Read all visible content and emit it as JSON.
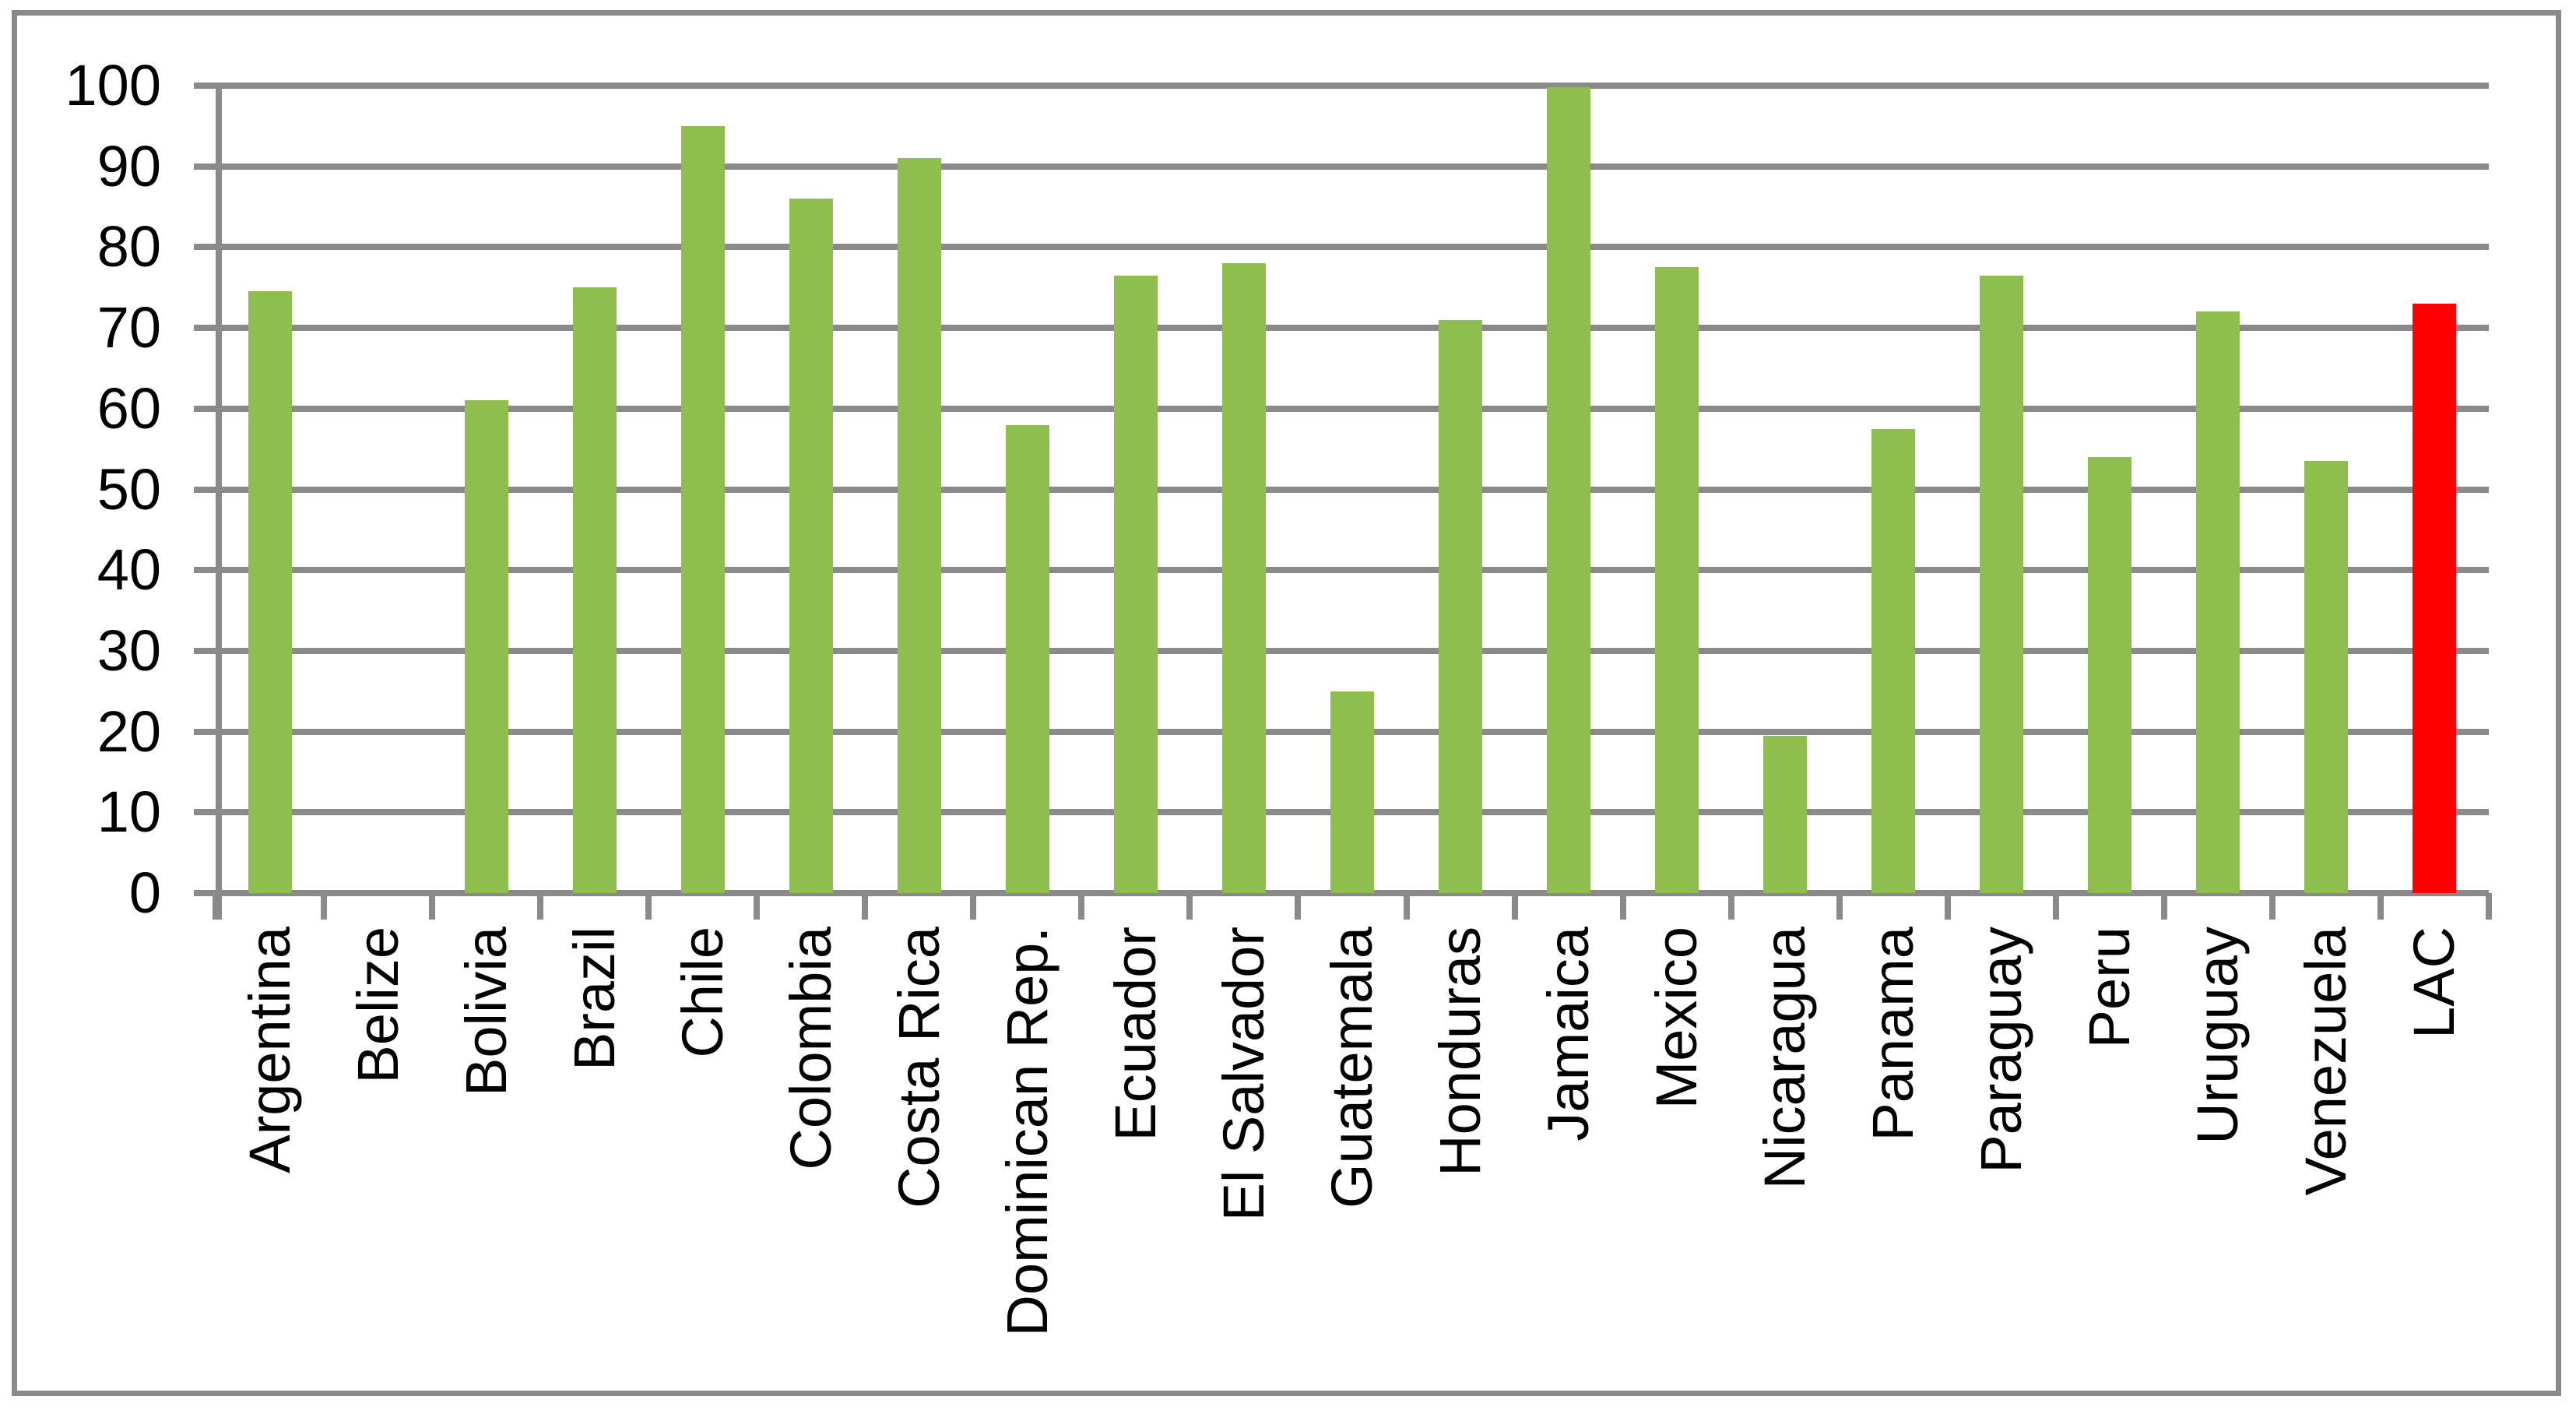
{
  "chart_data": {
    "type": "bar",
    "title": "",
    "xlabel": "",
    "ylabel": "",
    "categories": [
      "Argentina",
      "Belize",
      "Bolivia",
      "Brazil",
      "Chile",
      "Colombia",
      "Costa Rica",
      "Dominican Rep.",
      "Ecuador",
      "El Salvador",
      "Guatemala",
      "Honduras",
      "Jamaica",
      "Mexico",
      "Nicaragua",
      "Panama",
      "Paraguay",
      "Peru",
      "Uruguay",
      "Venezuela",
      "LAC"
    ],
    "values": [
      74.5,
      0,
      61,
      75,
      95,
      86,
      91,
      58,
      76.5,
      78,
      25,
      71,
      99.8,
      77.5,
      19.5,
      57.5,
      76.5,
      54,
      72,
      53.5,
      73
    ],
    "highlighted_category": "LAC",
    "bar_color": "#8DBE4E",
    "highlight_color": "#FF0000",
    "gridline_color": "#8A8A8A",
    "axis_text_color": "#000000",
    "background_color": "#FFFFFF",
    "border_color": "#8A8A8A",
    "ylim": [
      0,
      100
    ],
    "yticks": [
      0,
      10,
      20,
      30,
      40,
      50,
      60,
      70,
      80,
      90,
      100
    ],
    "grid": true,
    "legend": false,
    "x_label_rotation_deg": 90
  }
}
